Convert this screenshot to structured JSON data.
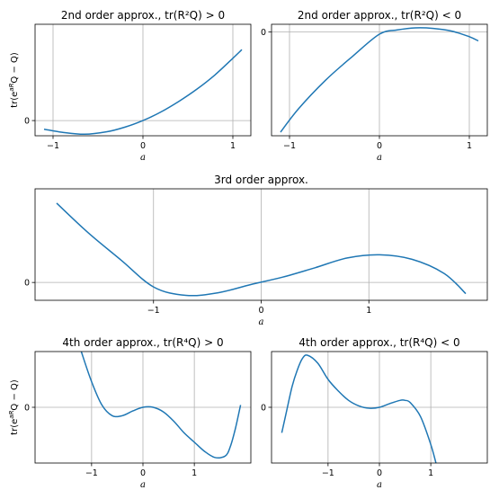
{
  "figure": {
    "line_color": "#1f77b4",
    "grid_color": "#b0b0b0",
    "ylabel_text": "tr(e",
    "ylabel_sup": "aR",
    "ylabel_tail": "Q − Q)",
    "xlabel": "a"
  },
  "chart_data": [
    {
      "type": "line",
      "title": "2nd order approx., tr(R²Q) > 0",
      "xlabel": "a",
      "ylabel": "tr(e^{aR}Q − Q)",
      "xlim": [
        -1.2,
        1.2
      ],
      "ylim": [
        -0.3,
        1.9
      ],
      "xticks": [
        -1,
        0,
        1
      ],
      "xtick_labels": [
        "−1",
        "0",
        "1"
      ],
      "yticks": [
        0
      ],
      "ytick_labels": [
        "0"
      ],
      "grid": true,
      "series": [
        {
          "x": [
            -1.1,
            -0.9,
            -0.65,
            -0.4,
            -0.2,
            0,
            0.2,
            0.4,
            0.6,
            0.8,
            1.0,
            1.1
          ],
          "y": [
            -0.17,
            -0.23,
            -0.27,
            -0.22,
            -0.13,
            0.0,
            0.17,
            0.38,
            0.62,
            0.9,
            1.23,
            1.4
          ]
        }
      ]
    },
    {
      "type": "line",
      "title": "2nd order approx., tr(R²Q) < 0",
      "xlabel": "a",
      "ylabel": "",
      "xlim": [
        -1.2,
        1.2
      ],
      "ylim": [
        -2.0,
        0.15
      ],
      "xticks": [
        -1,
        0,
        1
      ],
      "xtick_labels": [
        "−1",
        "0",
        "1"
      ],
      "yticks": [
        0
      ],
      "ytick_labels": [
        "0"
      ],
      "grid": true,
      "series": [
        {
          "x": [
            -1.1,
            -0.9,
            -0.6,
            -0.3,
            0,
            0.2,
            0.4,
            0.6,
            0.8,
            1.0,
            1.1
          ],
          "y": [
            -1.93,
            -1.48,
            -0.93,
            -0.47,
            -0.04,
            0.04,
            0.08,
            0.07,
            0.02,
            -0.09,
            -0.17
          ]
        }
      ]
    },
    {
      "type": "line",
      "title": "3rd order approx.",
      "xlabel": "a",
      "ylabel": "",
      "xlim": [
        -2.1,
        2.1
      ],
      "ylim": [
        -0.4,
        2.1
      ],
      "xticks": [
        -1,
        0,
        1
      ],
      "xtick_labels": [
        "−1",
        "0",
        "1"
      ],
      "yticks": [
        0
      ],
      "ytick_labels": [
        "0"
      ],
      "grid": true,
      "series": [
        {
          "x": [
            -1.9,
            -1.6,
            -1.3,
            -1.0,
            -0.7,
            -0.4,
            -0.1,
            0.2,
            0.5,
            0.8,
            1.1,
            1.4,
            1.7,
            1.9
          ],
          "y": [
            1.78,
            1.1,
            0.5,
            -0.1,
            -0.29,
            -0.23,
            -0.05,
            0.12,
            0.33,
            0.55,
            0.62,
            0.52,
            0.2,
            -0.25
          ]
        }
      ]
    },
    {
      "type": "line",
      "title": "4th order approx., tr(R⁴Q) > 0",
      "xlabel": "a",
      "ylabel": "tr(e^{aR}Q − Q)",
      "xlim": [
        -2.1,
        2.1
      ],
      "ylim": [
        -1.2,
        1.2
      ],
      "xticks": [
        -1,
        0,
        1
      ],
      "xtick_labels": [
        "−1",
        "0",
        "1"
      ],
      "yticks": [
        0
      ],
      "ytick_labels": [
        "0"
      ],
      "grid": true,
      "series": [
        {
          "x": [
            -1.2,
            -1.0,
            -0.8,
            -0.6,
            -0.4,
            -0.2,
            0.0,
            0.2,
            0.4,
            0.6,
            0.8,
            1.0,
            1.2,
            1.4,
            1.6,
            1.7,
            1.8,
            1.9
          ],
          "y": [
            1.2,
            0.55,
            0.05,
            -0.18,
            -0.18,
            -0.08,
            0.0,
            0.0,
            -0.1,
            -0.3,
            -0.55,
            -0.75,
            -0.95,
            -1.08,
            -1.05,
            -0.85,
            -0.45,
            0.05
          ]
        }
      ]
    },
    {
      "type": "line",
      "title": "4th order approx., tr(R⁴Q) < 0",
      "xlabel": "a",
      "ylabel": "",
      "xlim": [
        -2.1,
        2.1
      ],
      "ylim": [
        -1.2,
        1.2
      ],
      "xticks": [
        -1,
        0,
        1
      ],
      "xtick_labels": [
        "−1",
        "0",
        "1"
      ],
      "yticks": [
        0
      ],
      "ytick_labels": [
        "0"
      ],
      "grid": true,
      "series": [
        {
          "x": [
            -1.9,
            -1.8,
            -1.7,
            -1.6,
            -1.5,
            -1.4,
            -1.2,
            -1.0,
            -0.8,
            -0.6,
            -0.4,
            -0.2,
            0.0,
            0.2,
            0.4,
            0.5,
            0.6,
            0.8,
            1.0,
            1.1
          ],
          "y": [
            -0.55,
            -0.05,
            0.45,
            0.8,
            1.05,
            1.12,
            0.95,
            0.6,
            0.35,
            0.15,
            0.03,
            -0.02,
            0.0,
            0.08,
            0.15,
            0.15,
            0.1,
            -0.2,
            -0.8,
            -1.2
          ]
        }
      ]
    }
  ]
}
